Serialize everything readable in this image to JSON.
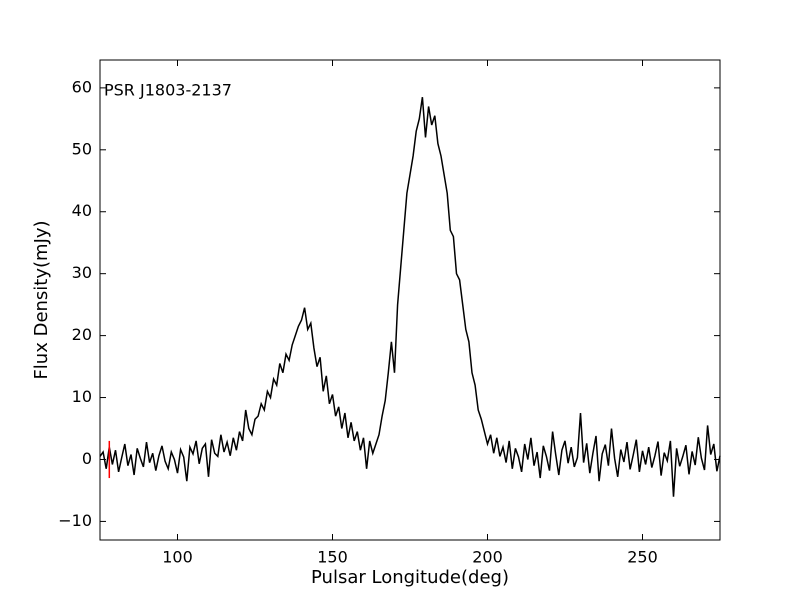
{
  "chart_data": {
    "type": "line",
    "annotation": "PSR J1803-2137",
    "x_label": "Pulsar Longitude(deg)",
    "y_label": "Flux Density(mJy)",
    "xlim": [
      75,
      275
    ],
    "ylim": [
      -13,
      64.5
    ],
    "xticks": [
      100,
      150,
      200,
      250
    ],
    "yticks": [
      {
        "value": -10,
        "label": "−10"
      },
      0,
      10,
      20,
      30,
      40,
      50,
      60
    ],
    "x": [
      75,
      76,
      77,
      78,
      79,
      80,
      81,
      82,
      83,
      84,
      85,
      86,
      87,
      88,
      89,
      90,
      91,
      92,
      93,
      94,
      95,
      96,
      97,
      98,
      99,
      100,
      101,
      102,
      103,
      104,
      105,
      106,
      107,
      108,
      109,
      110,
      111,
      112,
      113,
      114,
      115,
      116,
      117,
      118,
      119,
      120,
      121,
      122,
      123,
      124,
      125,
      126,
      127,
      128,
      129,
      130,
      131,
      132,
      133,
      134,
      135,
      136,
      137,
      138,
      139,
      140,
      141,
      142,
      143,
      144,
      145,
      146,
      147,
      148,
      149,
      150,
      151,
      152,
      153,
      154,
      155,
      156,
      157,
      158,
      159,
      160,
      161,
      162,
      163,
      164,
      165,
      166,
      167,
      168,
      169,
      170,
      171,
      172,
      173,
      174,
      175,
      176,
      177,
      178,
      179,
      180,
      181,
      182,
      183,
      184,
      185,
      186,
      187,
      188,
      189,
      190,
      191,
      192,
      193,
      194,
      195,
      196,
      197,
      198,
      199,
      200,
      201,
      202,
      203,
      204,
      205,
      206,
      207,
      208,
      209,
      210,
      211,
      212,
      213,
      214,
      215,
      216,
      217,
      218,
      219,
      220,
      221,
      222,
      223,
      224,
      225,
      226,
      227,
      228,
      229,
      230,
      231,
      232,
      233,
      234,
      235,
      236,
      237,
      238,
      239,
      240,
      241,
      242,
      243,
      244,
      245,
      246,
      247,
      248,
      249,
      250,
      251,
      252,
      253,
      254,
      255,
      256,
      257,
      258,
      259,
      260,
      261,
      262,
      263,
      264,
      265,
      266,
      267,
      268,
      269,
      270,
      271,
      272,
      273,
      274,
      275
    ],
    "series": [
      {
        "color": "#000000",
        "values": [
          0.5,
          1.2,
          -1.5,
          2.0,
          -0.8,
          1.5,
          -2.0,
          0.3,
          2.5,
          -1.0,
          0.8,
          -2.5,
          1.8,
          0.2,
          -1.2,
          2.8,
          -0.5,
          1.0,
          -1.8,
          0.6,
          2.2,
          -0.3,
          -1.5,
          1.2,
          0.0,
          -2.2,
          1.6,
          0.4,
          -3.5,
          2.0,
          0.9,
          3.0,
          -0.7,
          1.8,
          2.5,
          -2.8,
          3.2,
          1.0,
          0.5,
          4.0,
          1.2,
          2.8,
          0.6,
          3.5,
          1.5,
          4.5,
          3.0,
          8.0,
          5.0,
          4.0,
          6.5,
          7.0,
          9.0,
          8.0,
          11.0,
          10.0,
          13.0,
          12.0,
          15.5,
          14.0,
          17.0,
          16.0,
          18.5,
          20.0,
          21.5,
          22.5,
          24.5,
          21.0,
          22.0,
          18.0,
          15.0,
          16.5,
          11.0,
          13.5,
          9.0,
          10.5,
          7.0,
          8.5,
          5.0,
          7.5,
          3.5,
          6.0,
          3.0,
          4.5,
          1.5,
          3.5,
          -1.5,
          3.0,
          1.0,
          2.5,
          4.0,
          7.0,
          9.5,
          14.0,
          19.0,
          14.0,
          25.0,
          31.0,
          37.0,
          43.0,
          46.0,
          49.0,
          53.0,
          55.0,
          58.5,
          52.0,
          57.0,
          54.0,
          55.5,
          51.0,
          49.0,
          46.0,
          43.0,
          37.0,
          36.0,
          30.0,
          29.0,
          25.0,
          21.0,
          19.0,
          14.0,
          12.0,
          8.0,
          6.5,
          4.5,
          2.5,
          4.0,
          1.0,
          3.5,
          0.5,
          2.0,
          -0.5,
          3.0,
          -1.5,
          1.8,
          0.4,
          -2.0,
          2.5,
          0.0,
          3.5,
          -1.0,
          1.2,
          -3.0,
          2.2,
          0.5,
          -1.8,
          4.5,
          0.8,
          -2.5,
          1.5,
          3.0,
          -0.6,
          2.0,
          -1.2,
          0.3,
          7.5,
          -0.5,
          2.6,
          -2.2,
          1.0,
          3.8,
          -3.5,
          0.9,
          2.4,
          -1.0,
          5.0,
          0.2,
          -2.8,
          1.6,
          -0.4,
          2.8,
          -1.6,
          0.7,
          3.2,
          -2.0,
          1.4,
          -0.8,
          2.0,
          -1.3,
          0.6,
          2.9,
          -2.6,
          1.1,
          -0.2,
          3.0,
          -6.0,
          1.8,
          -1.1,
          0.5,
          2.3,
          -2.4,
          1.3,
          -0.9,
          3.6,
          0.2,
          -1.7,
          5.5,
          0.8,
          2.5,
          -1.9,
          0.6
        ]
      }
    ],
    "error_bar": {
      "x": 78,
      "value": 0,
      "error": 3,
      "color": "#ff0000"
    }
  }
}
